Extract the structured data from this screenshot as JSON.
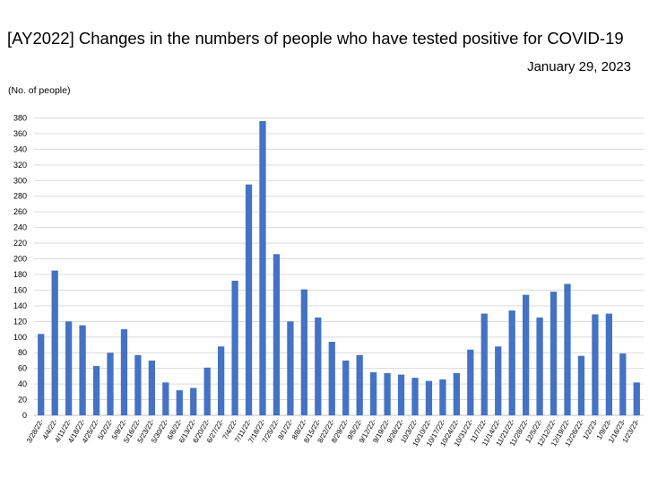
{
  "title": "[AY2022] Changes in the numbers of people who have tested positive for COVID-19",
  "date": "January 29, 2023",
  "chart_data": {
    "type": "bar",
    "title": "[AY2022] Changes in the numbers of people who have tested positive for COVID-19",
    "ylabel": "(No. of people)",
    "xlabel": "",
    "ylim": [
      0,
      380
    ],
    "ytick_step": 20,
    "grid": true,
    "bar_color": "#4472C4",
    "categories": [
      "3/28/22-",
      "4/4/22-",
      "4/11/22-",
      "4/18/22-",
      "4/25/22-",
      "5/2/22-",
      "5/9/22-",
      "5/16/22-",
      "5/23/22-",
      "5/30/22-",
      "6/6/22-",
      "6/13/22-",
      "6/20/22-",
      "6/27/22-",
      "7/4/22-",
      "7/11/22-",
      "7/18/22-",
      "7/25/22-",
      "8/1/22-",
      "8/8/22-",
      "8/15/22-",
      "8/22/22-",
      "8/29/22-",
      "9/5/22-",
      "9/12/22-",
      "9/19/22-",
      "9/26/22-",
      "10/3/22-",
      "10/10/22-",
      "10/17/22-",
      "10/24/22-",
      "10/31/22-",
      "11/7/22-",
      "11/14/22-",
      "11/21/22-",
      "11/28/22-",
      "12/5/22-",
      "12/12/22-",
      "12/19/22-",
      "12/26/22-",
      "1/2/23-",
      "1/9/23-",
      "1/16/23-",
      "1/23/23-"
    ],
    "values": [
      104,
      185,
      120,
      115,
      63,
      80,
      110,
      77,
      70,
      42,
      32,
      35,
      61,
      88,
      172,
      295,
      376,
      206,
      120,
      161,
      125,
      94,
      70,
      77,
      55,
      54,
      52,
      48,
      44,
      46,
      54,
      84,
      130,
      88,
      134,
      154,
      125,
      158,
      168,
      76,
      129,
      130,
      79,
      42
    ]
  }
}
